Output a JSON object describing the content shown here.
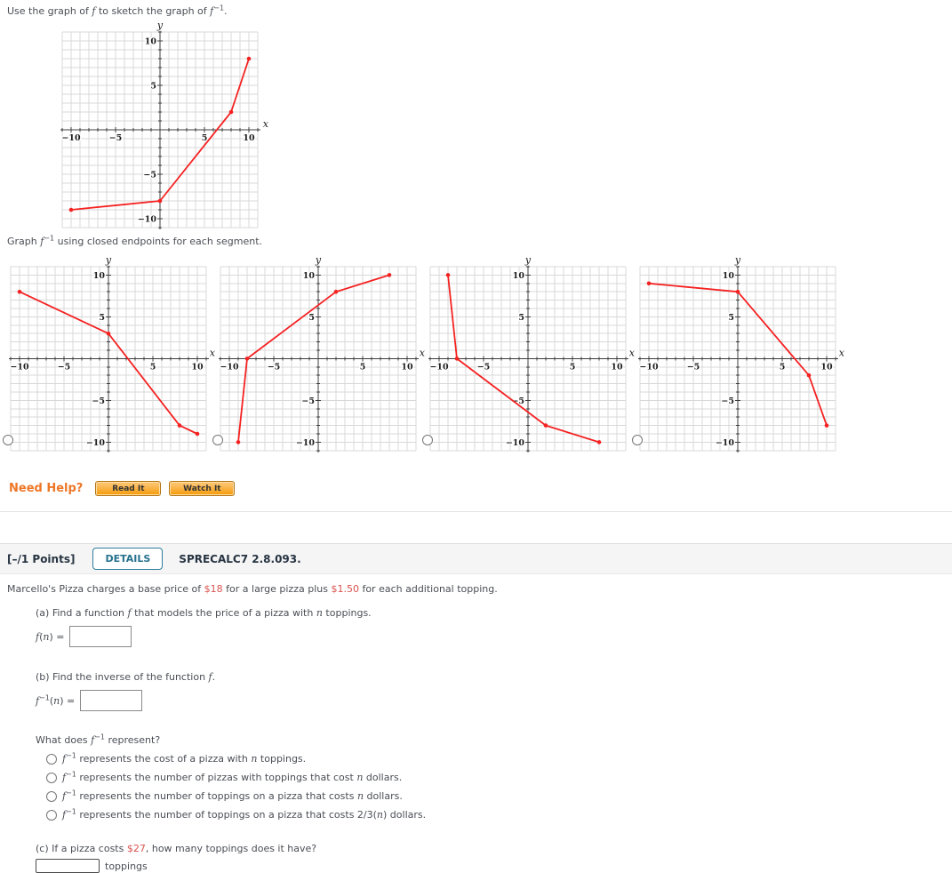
{
  "q1": {
    "instruction": {
      "pre": "Use the graph of ",
      "f1": "f",
      "mid": " to sketch the graph of ",
      "f2": "f",
      "sup": "−1",
      "end": "."
    },
    "graph_prompt": {
      "pre": "Graph ",
      "f": "f",
      "sup": "−1",
      "post": " using closed endpoints for each segment."
    },
    "need_help": {
      "label": "Need Help?",
      "read_btn": "Read It",
      "watch_btn": "Watch It"
    }
  },
  "chart_data": {
    "type": "line",
    "shared": {
      "xlim": [
        -11,
        11
      ],
      "ylim": [
        -11,
        11
      ],
      "labeled_ticks": [
        -10,
        -5,
        5,
        10
      ],
      "xlabel": "x",
      "ylabel": "y",
      "grid": true,
      "grid_color": "#d8d8d8",
      "axis_color": "#3c3c3c",
      "line_color": "#f52222"
    },
    "graphs": [
      {
        "id": "f",
        "role": "graph of f",
        "points": [
          [
            -10,
            -9
          ],
          [
            0,
            -8
          ],
          [
            8,
            2
          ],
          [
            10,
            8
          ]
        ]
      },
      {
        "id": "option-a",
        "role": "answer choice A",
        "points": [
          [
            -10,
            8
          ],
          [
            0,
            3
          ],
          [
            8,
            -8
          ],
          [
            10,
            -9
          ]
        ]
      },
      {
        "id": "option-b",
        "role": "answer choice B",
        "points": [
          [
            -9,
            -10
          ],
          [
            -8,
            0
          ],
          [
            2,
            8
          ],
          [
            8,
            10
          ]
        ]
      },
      {
        "id": "option-c",
        "role": "answer choice C",
        "points": [
          [
            -9,
            10
          ],
          [
            -8,
            0
          ],
          [
            2,
            -8
          ],
          [
            8,
            -10
          ]
        ]
      },
      {
        "id": "option-d",
        "role": "answer choice D",
        "points": [
          [
            -10,
            9
          ],
          [
            0,
            8
          ],
          [
            8,
            -2
          ],
          [
            10,
            -8
          ]
        ]
      }
    ]
  },
  "q2": {
    "header": {
      "points": "[–/1 Points]",
      "details_btn": "DETAILS",
      "source": "SPRECALC7 2.8.093."
    },
    "intro": {
      "p1": "Marcello's Pizza charges a base price of ",
      "price1": "$18",
      "p2": " for a large pizza plus ",
      "price2": "$1.50",
      "p3": " for each additional topping."
    },
    "part_a": {
      "label_pre": "(a) Find a function ",
      "f": "f",
      "label_mid": " that models the price of a pizza with ",
      "n": "n",
      "label_post": " toppings.",
      "func": {
        "f": "f",
        "open": "(",
        "n": "n",
        "close": ") = "
      }
    },
    "part_b": {
      "label_pre": "(b) Find the inverse of the function ",
      "f": "f",
      "label_post": ".",
      "func": {
        "f": "f",
        "sup": "−1",
        "open": "(",
        "n": "n",
        "close": ") = "
      }
    },
    "what_does": {
      "pre": "What does ",
      "f": "f",
      "sup": "−1",
      "post": " represent?"
    },
    "options": [
      {
        "f": "f",
        "sup": "−1",
        "mid": " represents the cost of a pizza with ",
        "n": "n",
        "tail": " toppings."
      },
      {
        "f": "f",
        "sup": "−1",
        "mid": " represents the number of pizzas with toppings that cost ",
        "n": "n",
        "tail": " dollars."
      },
      {
        "f": "f",
        "sup": "−1",
        "mid": " represents the number of toppings on a pizza that costs ",
        "n": "n",
        "tail": " dollars."
      },
      {
        "f": "f",
        "sup": "−1",
        "mid": " represents the number of toppings on a pizza that costs 2/3(",
        "n": "n",
        "tail": ") dollars."
      }
    ],
    "part_c": {
      "p1": "(c) If a pizza costs ",
      "price": "$27",
      "p2": ", how many toppings does it have?",
      "unit": "toppings"
    }
  },
  "colors": {
    "accent_red": "#d9534f",
    "help_orange": "#ee7626",
    "details_blue": "#26718e",
    "line_red": "#f52222"
  }
}
